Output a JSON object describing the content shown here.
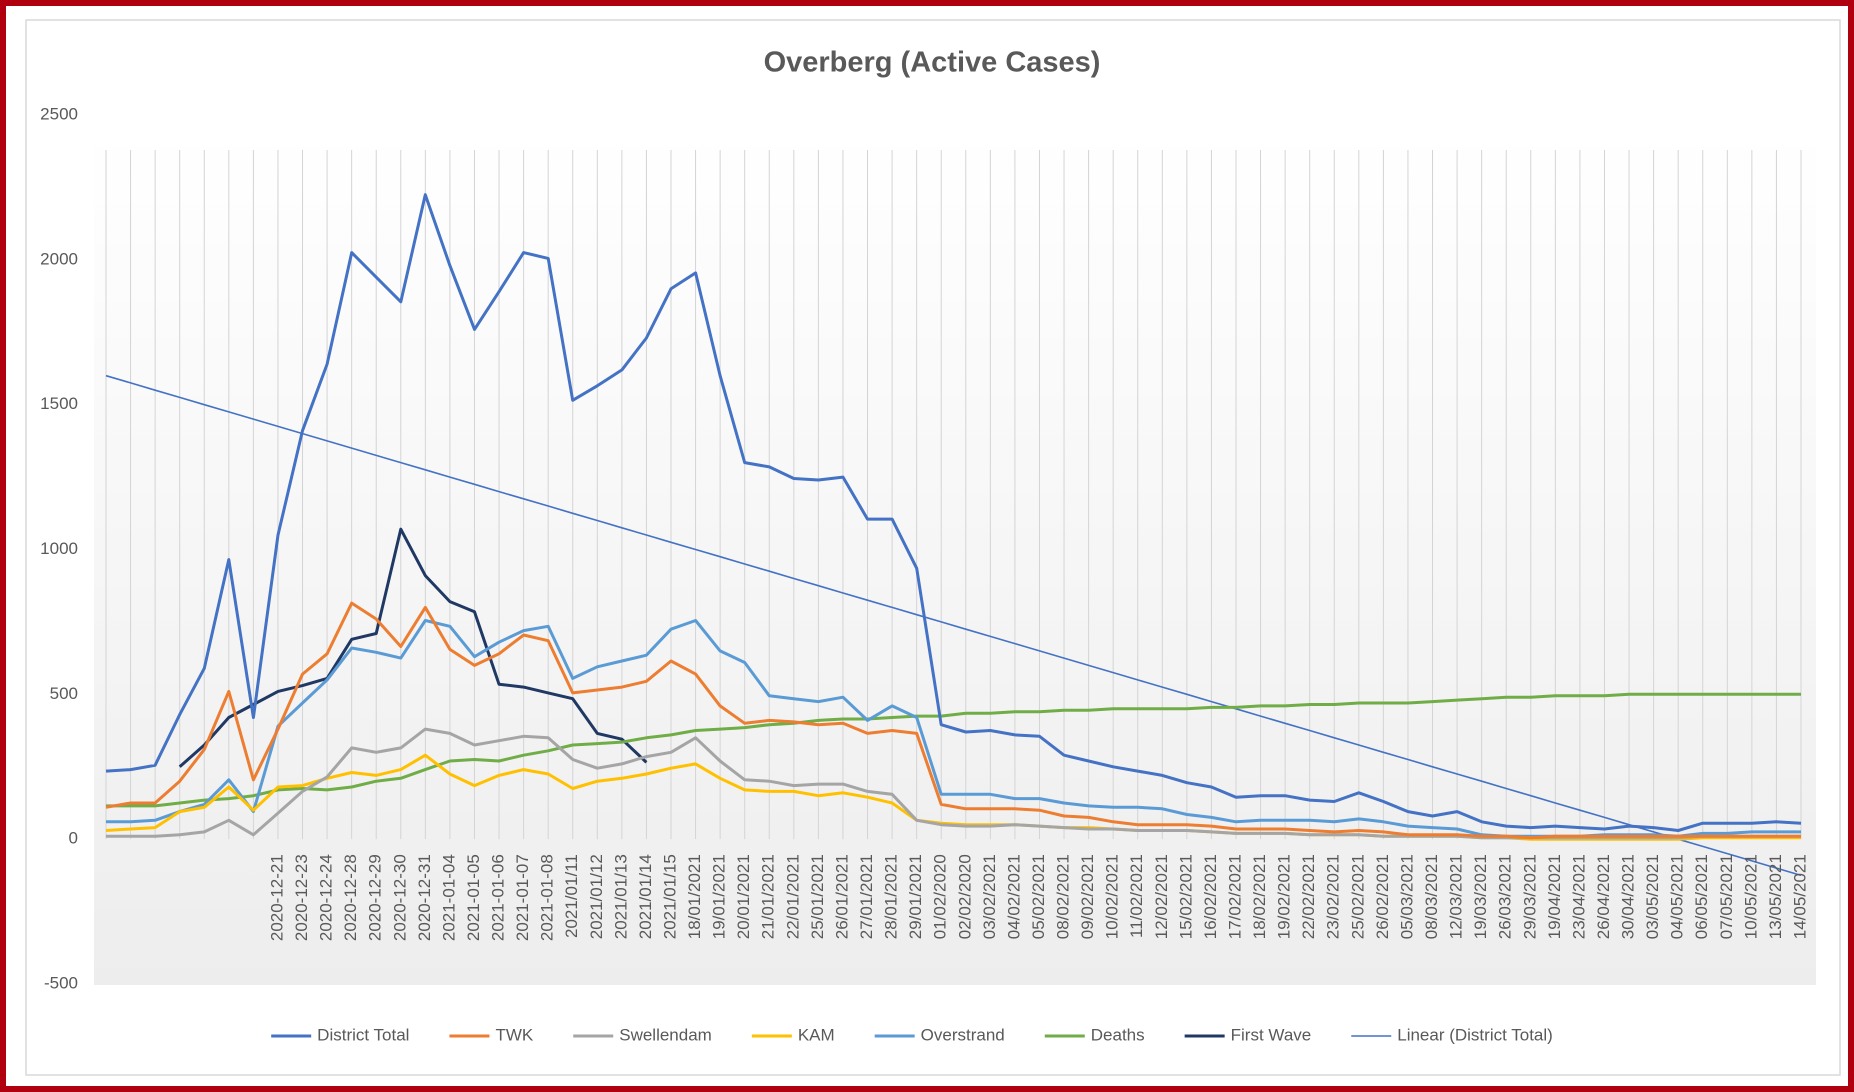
{
  "chart_data": {
    "type": "line",
    "title": "Overberg (Active Cases)",
    "categories": [
      null,
      null,
      null,
      null,
      null,
      null,
      null,
      "2020-12-21",
      "2020-12-23",
      "2020-12-24",
      "2020-12-28",
      "2020-12-29",
      "2020-12-30",
      "2020-12-31",
      "2021-01-04",
      "2021-01-05",
      "2021-01-06",
      "2021-01-07",
      "2021-01-08",
      "2021/01/11",
      "2021/01/12",
      "2021/01/13",
      "2021/01/14",
      "2021/01/15",
      "18/01/2021",
      "19/01/2021",
      "20/01/2021",
      "21/01/2021",
      "22/01/2021",
      "25/01/2021",
      "26/01/2021",
      "27/01/2021",
      "28/01/2021",
      "29/01/2021",
      "01/02/2020",
      "02/02/2020",
      "03/02/2021",
      "04/02/2021",
      "05/02/2021",
      "08/02/2021",
      "09/02/2021",
      "10/02/2021",
      "11/02/2021",
      "12/02/2021",
      "15/02/2021",
      "16/02/2021",
      "17/02/2021",
      "18/02/2021",
      "19/02/2021",
      "22/02/2021",
      "23/02/2021",
      "25/02/2021",
      "26/02/2021",
      "05/03/2021",
      "08/03/2021",
      "12/03/2021",
      "19/03/2021",
      "26/03/2021",
      "29/03/2021",
      "19/04/2021",
      "23/04/2021",
      "26/04/2021",
      "30/04/2021",
      "03/05/2021",
      "04/05/2021",
      "06/05/2021",
      "07/05/2021",
      "10/05/2021",
      "13/05/2021",
      "14/05/2021"
    ],
    "series": [
      {
        "name": "District Total",
        "color": "#4472c4",
        "values": [
          235,
          240,
          255,
          430,
          590,
          965,
          420,
          1050,
          1410,
          1640,
          2025,
          1940,
          1855,
          2225,
          1980,
          1760,
          1890,
          2025,
          2005,
          1515,
          1565,
          1620,
          1730,
          1900,
          1955,
          1600,
          1300,
          1285,
          1245,
          1240,
          1250,
          1105,
          1105,
          935,
          395,
          370,
          375,
          360,
          355,
          290,
          270,
          250,
          235,
          220,
          195,
          180,
          145,
          150,
          150,
          135,
          130,
          160,
          130,
          95,
          80,
          95,
          60,
          45,
          40,
          45,
          40,
          35,
          45,
          40,
          30,
          55,
          55,
          55,
          60,
          55
        ]
      },
      {
        "name": "TWK",
        "color": "#ed7d31",
        "values": [
          110,
          125,
          125,
          200,
          310,
          510,
          205,
          380,
          570,
          640,
          815,
          760,
          665,
          800,
          655,
          600,
          640,
          705,
          685,
          505,
          515,
          525,
          545,
          615,
          570,
          460,
          400,
          410,
          405,
          395,
          400,
          365,
          375,
          365,
          120,
          105,
          105,
          105,
          100,
          80,
          75,
          60,
          50,
          50,
          50,
          45,
          35,
          35,
          35,
          30,
          25,
          30,
          25,
          15,
          15,
          15,
          10,
          10,
          5,
          10,
          10,
          10,
          10,
          10,
          10,
          10,
          10,
          10,
          10,
          10
        ]
      },
      {
        "name": "Swellendam",
        "color": "#a5a5a5",
        "values": [
          10,
          10,
          10,
          15,
          25,
          65,
          15,
          90,
          165,
          215,
          315,
          300,
          315,
          380,
          365,
          325,
          340,
          355,
          350,
          275,
          245,
          260,
          285,
          300,
          350,
          270,
          205,
          200,
          185,
          190,
          190,
          165,
          155,
          65,
          50,
          45,
          45,
          50,
          45,
          40,
          35,
          35,
          30,
          30,
          30,
          25,
          20,
          20,
          20,
          15,
          15,
          15,
          10,
          10,
          10,
          10,
          5,
          5,
          5,
          5,
          5,
          5,
          5,
          5,
          5,
          10,
          10,
          10,
          10,
          10
        ]
      },
      {
        "name": "KAM",
        "color": "#ffc000",
        "values": [
          30,
          35,
          40,
          95,
          110,
          180,
          100,
          180,
          185,
          210,
          230,
          220,
          240,
          290,
          225,
          185,
          220,
          240,
          225,
          175,
          200,
          210,
          225,
          245,
          260,
          210,
          170,
          165,
          165,
          150,
          160,
          145,
          125,
          65,
          55,
          50,
          50,
          50,
          45,
          40,
          40,
          35,
          30,
          30,
          30,
          25,
          20,
          20,
          20,
          15,
          15,
          15,
          10,
          10,
          10,
          10,
          5,
          5,
          0,
          0,
          0,
          0,
          0,
          0,
          0,
          5,
          5,
          5,
          5,
          5
        ]
      },
      {
        "name": "Overstrand",
        "color": "#5b9bd5",
        "values": [
          60,
          60,
          65,
          95,
          120,
          205,
          95,
          390,
          470,
          550,
          660,
          645,
          625,
          755,
          735,
          630,
          680,
          720,
          735,
          555,
          595,
          615,
          635,
          725,
          755,
          650,
          610,
          495,
          485,
          475,
          490,
          410,
          460,
          420,
          155,
          155,
          155,
          140,
          140,
          125,
          115,
          110,
          110,
          105,
          85,
          75,
          60,
          65,
          65,
          65,
          60,
          70,
          60,
          45,
          40,
          35,
          15,
          10,
          10,
          10,
          10,
          15,
          15,
          15,
          10,
          20,
          20,
          25,
          25,
          25
        ]
      },
      {
        "name": "Deaths",
        "color": "#70ad47",
        "values": [
          115,
          115,
          115,
          125,
          135,
          140,
          150,
          170,
          175,
          170,
          180,
          200,
          210,
          240,
          270,
          275,
          270,
          290,
          305,
          325,
          330,
          335,
          350,
          360,
          375,
          380,
          385,
          395,
          400,
          410,
          415,
          415,
          420,
          425,
          425,
          435,
          435,
          440,
          440,
          445,
          445,
          450,
          450,
          450,
          450,
          455,
          455,
          460,
          460,
          465,
          465,
          470,
          470,
          470,
          475,
          480,
          485,
          490,
          490,
          495,
          495,
          495,
          500,
          500,
          500,
          500,
          500,
          500,
          500,
          500
        ]
      },
      {
        "name": "First Wave",
        "color": "#203864",
        "values": [
          null,
          null,
          null,
          250,
          325,
          420,
          465,
          510,
          530,
          555,
          690,
          710,
          1070,
          910,
          820,
          785,
          535,
          525,
          505,
          485,
          365,
          345,
          265,
          null,
          null,
          null,
          null,
          null,
          null,
          null,
          null,
          null,
          null,
          null,
          null,
          null,
          null,
          null,
          null,
          null,
          null,
          null,
          null,
          null,
          null,
          null,
          null,
          null,
          null,
          null,
          null,
          null,
          null,
          null,
          null,
          null,
          null,
          null,
          null,
          null,
          null,
          null,
          null,
          null,
          null,
          null,
          null,
          null,
          null,
          null
        ]
      },
      {
        "name": "Linear (District Total)",
        "color": "#4472c4",
        "values": [
          1600,
          1575,
          1550,
          1525,
          1500,
          1475,
          1450,
          1425,
          1400,
          1375,
          1350,
          1325,
          1300,
          1275,
          1250,
          1225,
          1200,
          1175,
          1150,
          1125,
          1100,
          1075,
          1050,
          1025,
          1000,
          975,
          950,
          925,
          900,
          875,
          850,
          825,
          800,
          775,
          750,
          725,
          700,
          675,
          650,
          625,
          600,
          575,
          550,
          525,
          500,
          475,
          450,
          425,
          400,
          375,
          350,
          325,
          300,
          275,
          250,
          225,
          200,
          175,
          150,
          125,
          100,
          75,
          50,
          25,
          0,
          -25,
          -50,
          -75,
          -100,
          -125
        ]
      }
    ],
    "ylim": [
      -500,
      2500
    ],
    "yticks": [
      -500,
      0,
      500,
      1000,
      1500,
      2000,
      2500
    ],
    "xgrid": true,
    "legend": "bottom"
  }
}
